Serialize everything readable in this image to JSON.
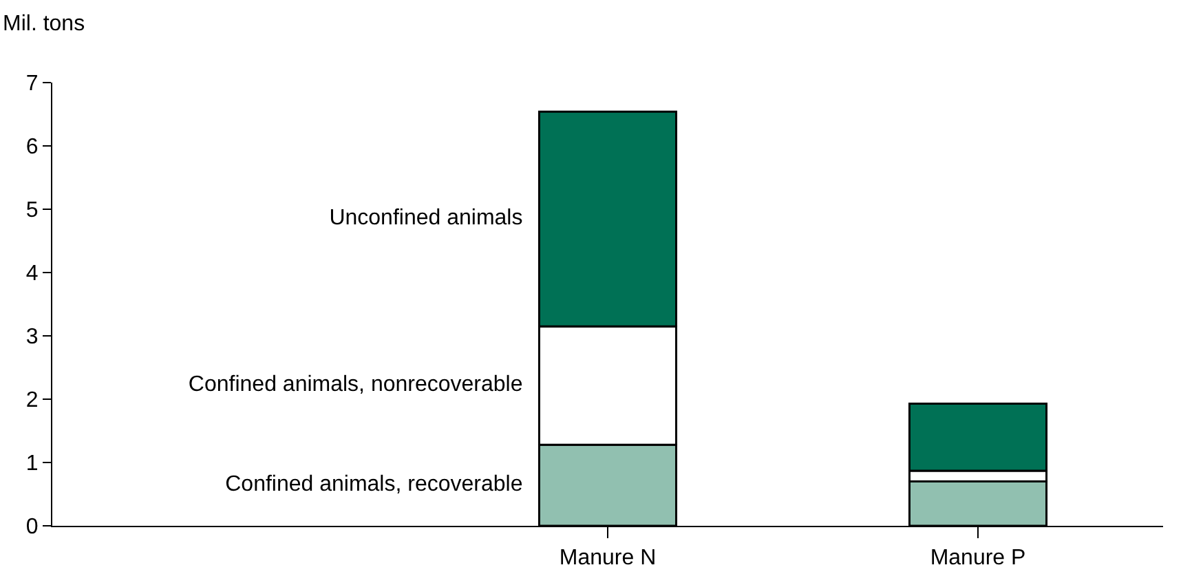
{
  "chart_data": {
    "type": "bar",
    "stacked": true,
    "ylabel": "Mil. tons",
    "categories": [
      null,
      "Manure N",
      "Manure P"
    ],
    "series": [
      {
        "name": "Confined animals, recoverable",
        "color": "#91c0b0",
        "values": [
          null,
          1.28,
          0.7
        ]
      },
      {
        "name": "Confined animals, nonrecoverable",
        "color": "#ffffff",
        "values": [
          null,
          1.87,
          0.17
        ]
      },
      {
        "name": "Unconfined animals",
        "color": "#007155",
        "values": [
          null,
          3.39,
          1.06
        ]
      }
    ],
    "ylim": [
      0,
      7
    ],
    "yticks": [
      0,
      1,
      2,
      3,
      4,
      5,
      6,
      7
    ],
    "grid": false,
    "legend": false
  }
}
